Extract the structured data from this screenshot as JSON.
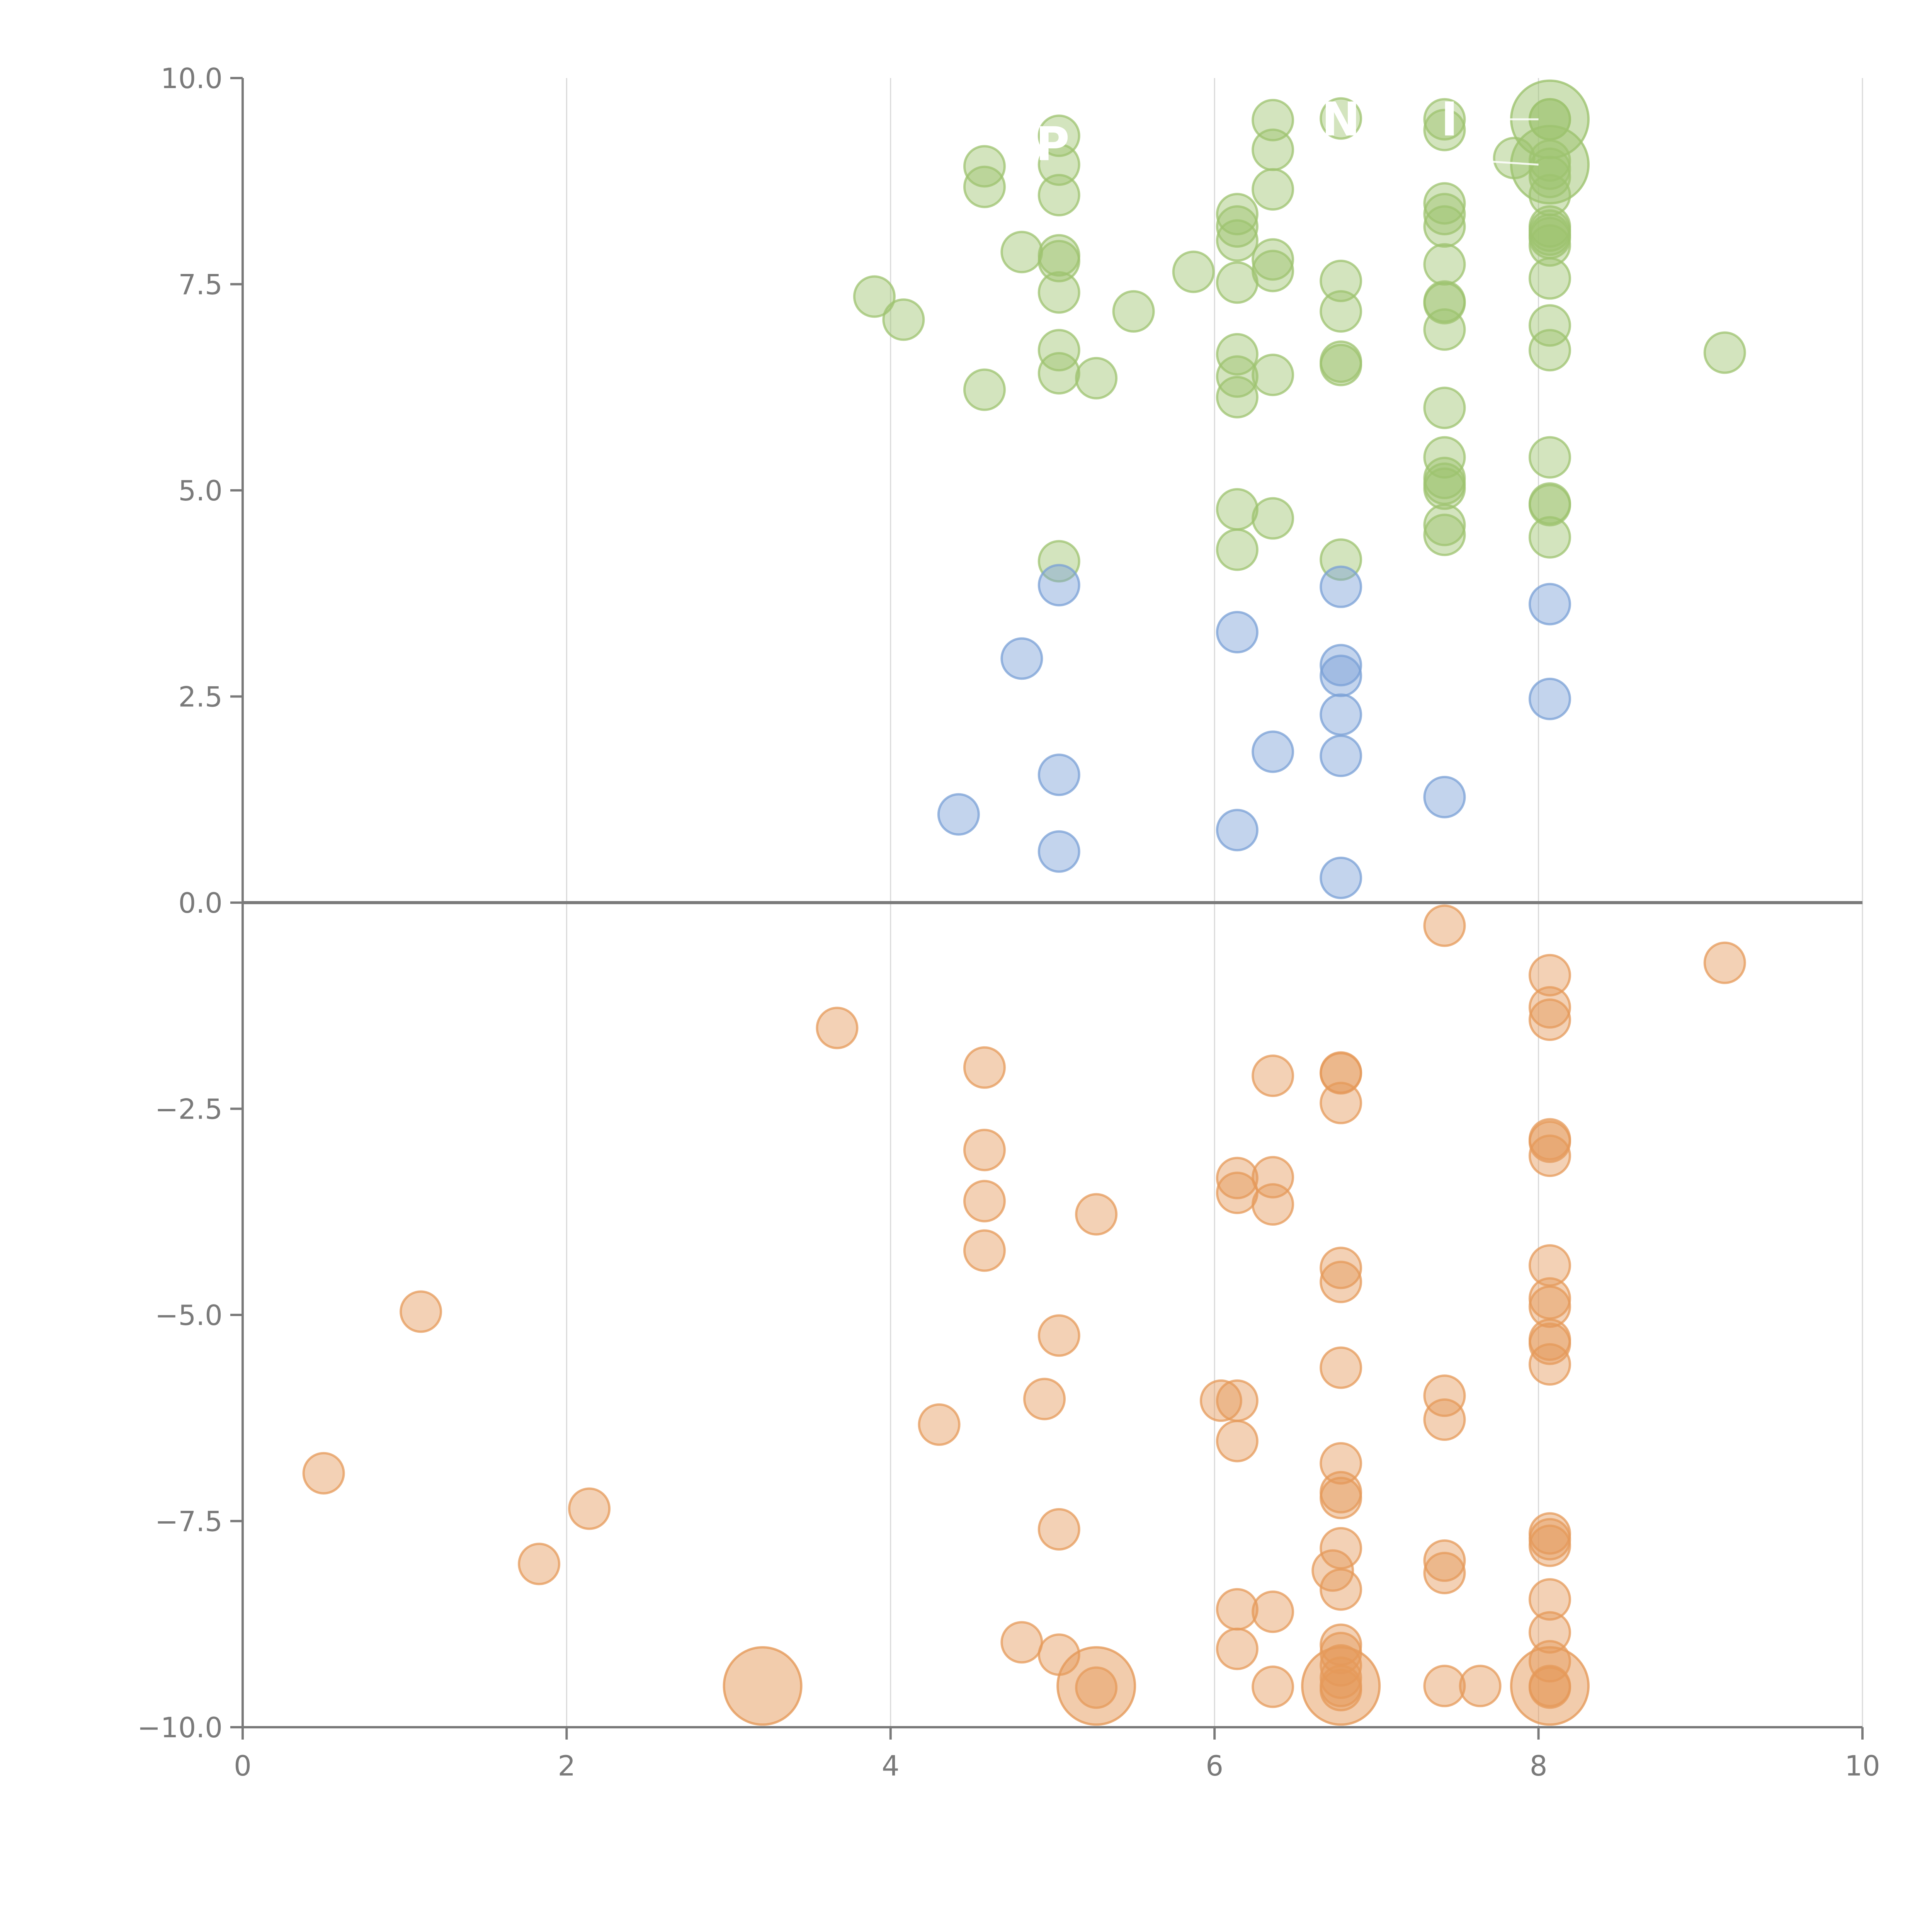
{
  "chart_data": {
    "type": "scatter",
    "title": "",
    "xlabel": "",
    "ylabel": "",
    "xlim": [
      0,
      10
    ],
    "ylim": [
      -10,
      10
    ],
    "xticks": [
      0,
      2,
      4,
      6,
      8,
      10
    ],
    "yticks": [
      -10,
      -7.5,
      -5,
      -2.5,
      0,
      2.5,
      5,
      7.5,
      10
    ],
    "xtick_labels": [
      "0",
      "2",
      "4",
      "6",
      "8",
      "10"
    ],
    "ytick_labels": [
      "−10.0",
      "−7.5",
      "−5.0",
      "−2.5",
      "0.0",
      "2.5",
      "5.0",
      "7.5",
      "10.0"
    ],
    "grid": "vertical",
    "zero_line": true,
    "series": [
      {
        "color": "#9dc36f",
        "points": [
          [
            3.9,
            7.35
          ],
          [
            4.08,
            7.07
          ],
          [
            4.58,
            8.93
          ],
          [
            4.58,
            8.68
          ],
          [
            4.58,
            6.22
          ],
          [
            4.81,
            7.89
          ],
          [
            5.04,
            9.3
          ],
          [
            5.04,
            8.95
          ],
          [
            5.04,
            8.58
          ],
          [
            5.04,
            7.85
          ],
          [
            5.04,
            7.78
          ],
          [
            5.04,
            7.4
          ],
          [
            5.04,
            6.7
          ],
          [
            5.04,
            6.42
          ],
          [
            5.04,
            4.14
          ],
          [
            5.27,
            6.36
          ],
          [
            5.5,
            7.17
          ],
          [
            5.87,
            7.65
          ],
          [
            6.14,
            8.35
          ],
          [
            6.14,
            8.2
          ],
          [
            6.14,
            8.03
          ],
          [
            6.14,
            7.52
          ],
          [
            6.14,
            6.65
          ],
          [
            6.14,
            6.38
          ],
          [
            6.14,
            6.13
          ],
          [
            6.14,
            4.77
          ],
          [
            6.14,
            4.28
          ],
          [
            6.36,
            9.49
          ],
          [
            6.36,
            9.13
          ],
          [
            6.36,
            8.65
          ],
          [
            6.36,
            7.8
          ],
          [
            6.36,
            7.66
          ],
          [
            6.36,
            6.4
          ],
          [
            6.36,
            4.66
          ],
          [
            6.78,
            9.51
          ],
          [
            6.78,
            7.54
          ],
          [
            6.78,
            7.17
          ],
          [
            6.78,
            6.56
          ],
          [
            6.78,
            6.52
          ],
          [
            6.78,
            4.16
          ],
          [
            7.42,
            9.5
          ],
          [
            7.42,
            9.37
          ],
          [
            7.42,
            8.48
          ],
          [
            7.42,
            8.35
          ],
          [
            7.42,
            8.2
          ],
          [
            7.42,
            7.74
          ],
          [
            7.42,
            7.29
          ],
          [
            7.42,
            7.27
          ],
          [
            7.42,
            6.95
          ],
          [
            7.42,
            6.0
          ],
          [
            7.42,
            5.4
          ],
          [
            7.42,
            5.15
          ],
          [
            7.42,
            5.08
          ],
          [
            7.42,
            5.02
          ],
          [
            7.42,
            4.58
          ],
          [
            7.42,
            4.46
          ],
          [
            7.85,
            9.03
          ],
          [
            8.07,
            9.5
          ],
          [
            8.07,
            9.5
          ],
          [
            8.07,
            9.0
          ],
          [
            8.07,
            8.9
          ],
          [
            8.07,
            8.8
          ],
          [
            8.07,
            8.58
          ],
          [
            8.07,
            8.2
          ],
          [
            8.07,
            8.15
          ],
          [
            8.07,
            8.1
          ],
          [
            8.07,
            8.06
          ],
          [
            8.07,
            7.97
          ],
          [
            8.07,
            7.57
          ],
          [
            8.07,
            7.0
          ],
          [
            8.07,
            6.7
          ],
          [
            8.07,
            5.4
          ],
          [
            8.07,
            4.84
          ],
          [
            8.07,
            4.82
          ],
          [
            8.07,
            4.43
          ],
          [
            9.15,
            6.67
          ]
        ],
        "large_points": [
          [
            8.07,
            9.5
          ],
          [
            8.07,
            8.95
          ]
        ]
      },
      {
        "color": "#7aa0d6",
        "points": [
          [
            4.42,
            1.07
          ],
          [
            4.81,
            2.96
          ],
          [
            5.04,
            3.85
          ],
          [
            5.04,
            1.55
          ],
          [
            5.04,
            0.62
          ],
          [
            6.14,
            3.28
          ],
          [
            6.14,
            0.88
          ],
          [
            6.36,
            1.83
          ],
          [
            6.78,
            3.83
          ],
          [
            6.78,
            2.88
          ],
          [
            6.78,
            2.75
          ],
          [
            6.78,
            2.28
          ],
          [
            6.78,
            1.78
          ],
          [
            6.78,
            0.3
          ],
          [
            7.42,
            1.28
          ],
          [
            8.07,
            3.62
          ],
          [
            8.07,
            2.47
          ]
        ],
        "large_points": []
      },
      {
        "color": "#e59a5a",
        "points": [
          [
            0.5,
            -6.92
          ],
          [
            1.1,
            -4.96
          ],
          [
            1.83,
            -8.02
          ],
          [
            2.14,
            -7.35
          ],
          [
            3.67,
            -1.52
          ],
          [
            4.3,
            -6.33
          ],
          [
            4.58,
            -2.0
          ],
          [
            4.58,
            -3.0
          ],
          [
            4.58,
            -3.62
          ],
          [
            4.58,
            -4.22
          ],
          [
            4.81,
            -8.97
          ],
          [
            4.95,
            -6.02
          ],
          [
            5.04,
            -5.25
          ],
          [
            5.04,
            -7.6
          ],
          [
            5.04,
            -9.12
          ],
          [
            5.27,
            -3.78
          ],
          [
            5.27,
            -9.52
          ],
          [
            6.04,
            -6.04
          ],
          [
            6.14,
            -3.34
          ],
          [
            6.14,
            -3.52
          ],
          [
            6.14,
            -6.04
          ],
          [
            6.14,
            -6.53
          ],
          [
            6.14,
            -8.57
          ],
          [
            6.14,
            -9.05
          ],
          [
            6.36,
            -2.1
          ],
          [
            6.36,
            -3.33
          ],
          [
            6.36,
            -3.66
          ],
          [
            6.36,
            -8.6
          ],
          [
            6.36,
            -9.51
          ],
          [
            6.73,
            -8.1
          ],
          [
            6.78,
            -2.06
          ],
          [
            6.78,
            -2.07
          ],
          [
            6.78,
            -2.43
          ],
          [
            6.78,
            -4.43
          ],
          [
            6.78,
            -4.6
          ],
          [
            6.78,
            -5.64
          ],
          [
            6.78,
            -6.8
          ],
          [
            6.78,
            -7.15
          ],
          [
            6.78,
            -7.22
          ],
          [
            6.78,
            -7.83
          ],
          [
            6.78,
            -8.33
          ],
          [
            6.78,
            -9.0
          ],
          [
            6.78,
            -9.1
          ],
          [
            6.78,
            -9.25
          ],
          [
            6.78,
            -9.4
          ],
          [
            6.78,
            -9.5
          ],
          [
            6.78,
            -9.55
          ],
          [
            7.42,
            -0.28
          ],
          [
            7.42,
            -5.98
          ],
          [
            7.42,
            -6.27
          ],
          [
            7.42,
            -7.98
          ],
          [
            7.42,
            -8.13
          ],
          [
            7.42,
            -9.5
          ],
          [
            7.64,
            -9.5
          ],
          [
            8.07,
            -0.88
          ],
          [
            8.07,
            -1.27
          ],
          [
            8.07,
            -1.42
          ],
          [
            8.07,
            -2.87
          ],
          [
            8.07,
            -2.9
          ],
          [
            8.07,
            -3.07
          ],
          [
            8.07,
            -4.4
          ],
          [
            8.07,
            -4.8
          ],
          [
            8.07,
            -4.9
          ],
          [
            8.07,
            -5.3
          ],
          [
            8.07,
            -5.35
          ],
          [
            8.07,
            -5.6
          ],
          [
            8.07,
            -7.65
          ],
          [
            8.07,
            -7.72
          ],
          [
            8.07,
            -7.8
          ],
          [
            8.07,
            -8.45
          ],
          [
            8.07,
            -8.85
          ],
          [
            8.07,
            -9.2
          ],
          [
            8.07,
            -9.5
          ],
          [
            8.07,
            -9.52
          ],
          [
            9.15,
            -0.73
          ]
        ],
        "large_points": [
          [
            3.21,
            -9.5
          ],
          [
            5.27,
            -9.5
          ],
          [
            6.78,
            -9.5
          ],
          [
            8.07,
            -9.5
          ]
        ]
      }
    ],
    "annotations": [
      {
        "text": "P",
        "x": 5.0,
        "y": 9.2
      },
      {
        "text": "N",
        "x": 6.78,
        "y": 9.5
      },
      {
        "text": "I",
        "x": 7.45,
        "y": 9.5
      }
    ]
  }
}
